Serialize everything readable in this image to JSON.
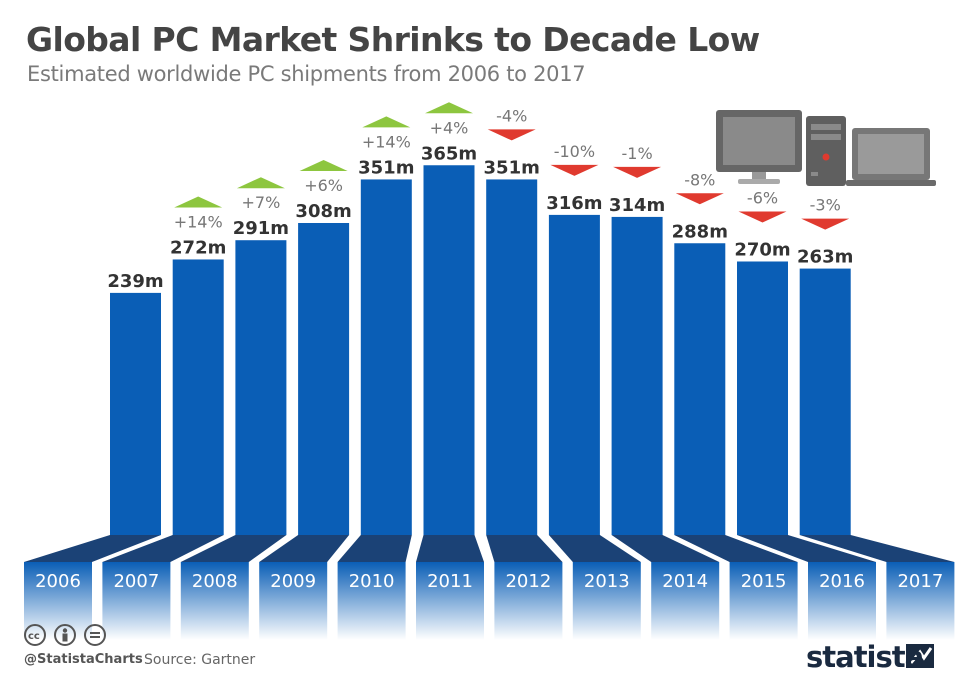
{
  "title": "Global PC Market Shrinks to Decade Low",
  "subtitle": "Estimated worldwide PC shipments from 2006 to 2017",
  "footer": {
    "handle": "@StatistaCharts",
    "source": "Source: Gartner",
    "brand": "statista"
  },
  "colors": {
    "bar": "#0a5eb6",
    "base": "#1b4276",
    "increase": "#8dc63f",
    "decrease": "#e03a2f",
    "value_text": "#333333",
    "change_text": "#777777"
  },
  "chart_data": {
    "type": "bar",
    "title": "Global PC Market Shrinks to Decade Low",
    "subtitle": "Estimated worldwide PC shipments from 2006 to 2017",
    "unit": "m",
    "categories": [
      "2006",
      "2007",
      "2008",
      "2009",
      "2010",
      "2011",
      "2012",
      "2013",
      "2014",
      "2015",
      "2016",
      "2017"
    ],
    "values": [
      239,
      272,
      291,
      308,
      351,
      365,
      351,
      316,
      314,
      288,
      270,
      263
    ],
    "value_labels": [
      "239m",
      "272m",
      "291m",
      "308m",
      "351m",
      "365m",
      "351m",
      "316m",
      "314m",
      "288m",
      "270m",
      "263m"
    ],
    "change_labels": [
      "",
      "+14%",
      "+7%",
      "+6%",
      "+14%",
      "+4%",
      "-4%",
      "-10%",
      "-1%",
      "-8%",
      "-6%",
      "-3%"
    ],
    "change_direction": [
      "",
      "up",
      "up",
      "up",
      "up",
      "up",
      "down",
      "down",
      "down",
      "down",
      "down",
      "down"
    ],
    "xlabel": "",
    "ylabel": "",
    "grid": false,
    "legend": "none"
  },
  "icons": [
    "desktop-monitor-icon",
    "pc-tower-icon",
    "laptop-icon",
    "cc-license-icon",
    "cc-by-icon",
    "cc-nd-icon",
    "statista-logo-icon"
  ]
}
